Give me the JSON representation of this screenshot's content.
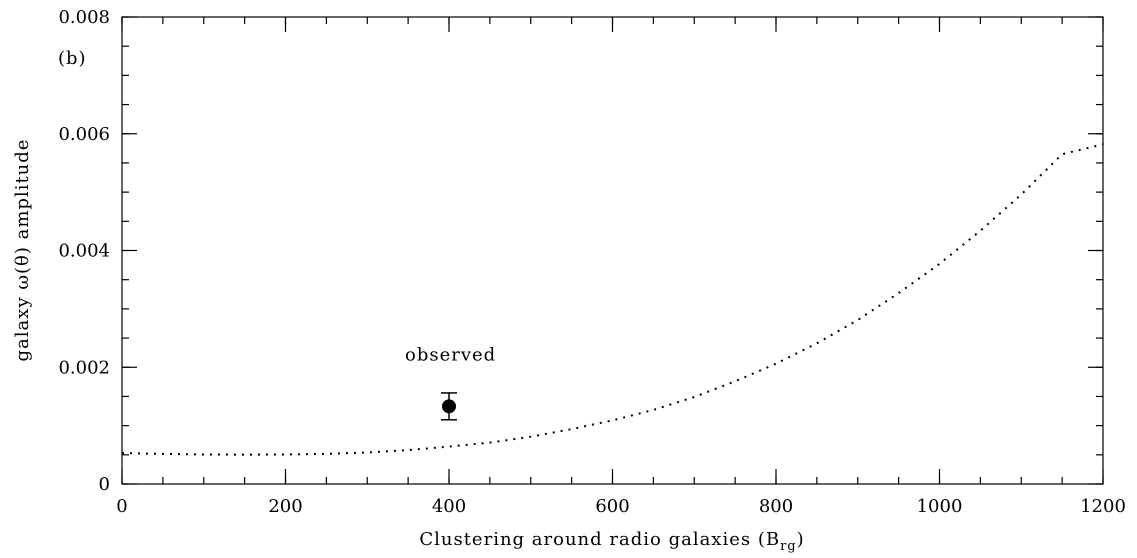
{
  "chart_data": {
    "type": "line",
    "panel_label": "(b)",
    "xlabel_main": "Clustering around radio galaxies (B",
    "xlabel_sub": "rg",
    "xlabel_close": ")",
    "ylabel": "galaxy ω(θ) amplitude",
    "xlim": [
      0,
      1200
    ],
    "ylim": [
      0,
      0.008
    ],
    "x_ticks": [
      0,
      200,
      400,
      600,
      800,
      1000,
      1200
    ],
    "x_tick_labels": [
      "0",
      "200",
      "400",
      "600",
      "800",
      "1000",
      "1200"
    ],
    "y_ticks": [
      0,
      0.002,
      0.004,
      0.006,
      0.008
    ],
    "y_tick_labels": [
      "0",
      "0.002",
      "0.004",
      "0.006",
      "0.008"
    ],
    "x_minor_step": 50,
    "y_minor_step": 0.0005,
    "grid": false,
    "series": [
      {
        "style": "dotted",
        "x": [
          0,
          50,
          100,
          150,
          200,
          250,
          300,
          350,
          400,
          450,
          500,
          550,
          600,
          650,
          700,
          750,
          800,
          850,
          900,
          950,
          1000,
          1050,
          1100,
          1150,
          1200
        ],
        "y": [
          0.00053,
          0.000515,
          0.000505,
          0.000503,
          0.000505,
          0.000515,
          0.00054,
          0.00058,
          0.00064,
          0.00071,
          0.00081,
          0.00094,
          0.00109,
          0.00127,
          0.00149,
          0.00176,
          0.00206,
          0.00241,
          0.00281,
          0.00327,
          0.00377,
          0.00434,
          0.00496,
          0.00565,
          0.00582
        ]
      }
    ],
    "points": [
      {
        "label": "observed",
        "x": 400,
        "y": 0.00133,
        "y_err_low": 0.00023,
        "y_err_high": 0.00023
      }
    ]
  }
}
